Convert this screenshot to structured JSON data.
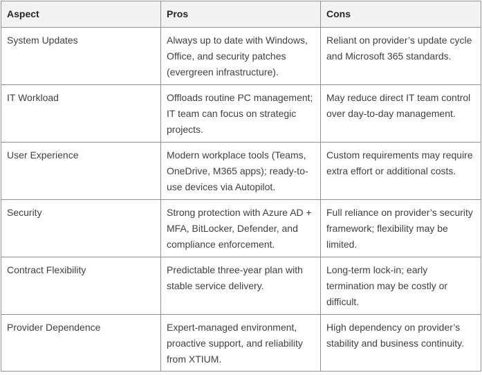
{
  "table": {
    "headers": [
      "Aspect",
      "Pros",
      "Cons"
    ],
    "rows": [
      [
        "System Updates",
        "Always up to date with Windows, Office, and security patches (evergreen infrastructure).",
        "Reliant on provider’s update cycle and Microsoft 365 standards."
      ],
      [
        "IT Workload",
        "Offloads routine PC management; IT team can focus on strategic projects.",
        "May reduce direct IT team control over day-to-day management."
      ],
      [
        "User Experience",
        "Modern workplace tools (Teams, OneDrive, M365 apps); ready-to-use devices via Autopilot.",
        "Custom requirements may require extra effort or additional costs."
      ],
      [
        "Security",
        "Strong protection with Azure AD + MFA, BitLocker, Defender, and compliance enforcement.",
        "Full reliance on provider’s security framework; flexibility may be limited."
      ],
      [
        "Contract Flexibility",
        "Predictable three-year plan with stable service delivery.",
        "Long-term lock-in; early termination may be costly or difficult."
      ],
      [
        "Provider Dependence",
        "Expert-managed environment, proactive support, and reliability from XTIUM.",
        "High dependency on provider’s stability and business continuity."
      ]
    ]
  }
}
